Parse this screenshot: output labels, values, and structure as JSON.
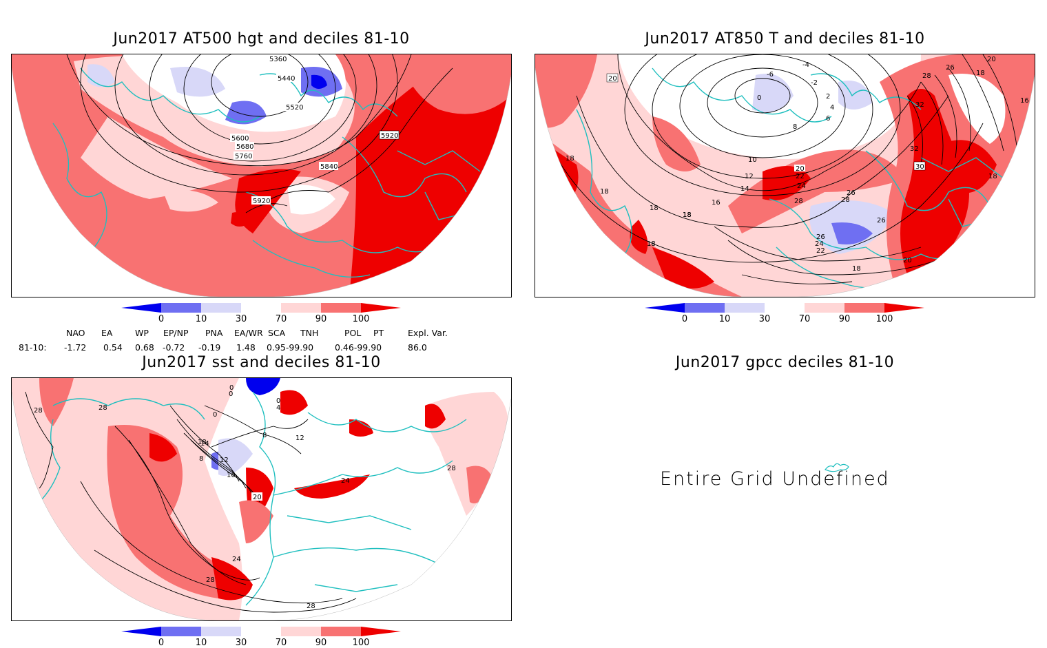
{
  "panels": {
    "hgt": {
      "title": "Jun2017 AT500 hgt and deciles 81-10",
      "contours": [
        "5360",
        "5440",
        "5520",
        "5600",
        "5680",
        "5760",
        "5840",
        "5920",
        "5920"
      ]
    },
    "t850": {
      "title": "Jun2017 AT850 T and deciles 81-10",
      "contours": [
        "18",
        "20",
        "-6",
        "-4",
        "-2",
        "0",
        "2",
        "4",
        "6",
        "8",
        "10",
        "12",
        "14",
        "16",
        "18",
        "18",
        "18",
        "18",
        "20",
        "22",
        "24",
        "26",
        "28",
        "28",
        "28",
        "30",
        "32",
        "32",
        "26",
        "20",
        "18",
        "16",
        "26",
        "26",
        "24",
        "22",
        "18",
        "20",
        "18",
        "18"
      ]
    },
    "sst": {
      "title": "Jun2017 sst and deciles 81-10",
      "contours": [
        "28",
        "28",
        "0",
        "0",
        "0",
        "0",
        "4",
        "8",
        "8",
        "12",
        "12",
        "14",
        "16",
        "18",
        "20",
        "24",
        "24",
        "28",
        "28",
        "28"
      ]
    },
    "gpcc": {
      "title": "Jun2017 gpcc deciles 81-10",
      "message": "Entire Grid Undefined"
    }
  },
  "colorbar": {
    "ticks": [
      "0",
      "10",
      "30",
      "70",
      "90",
      "100"
    ],
    "colors": [
      "#0000ee",
      "#6f6ff2",
      "#d8d8f8",
      "#ffffff",
      "#ffd6d6",
      "#f87272",
      "#ee0000"
    ]
  },
  "indices": {
    "headers": [
      "NAO",
      "EA",
      "WP",
      "EP/NP",
      "PNA",
      "EA/WR",
      "SCA",
      "TNH",
      "POL",
      "PT",
      "Expl. Var."
    ],
    "row_label": "81-10:",
    "values": [
      "-1.72",
      "0.54",
      "0.68",
      "-0.72",
      "-0.19",
      "1.48",
      "0.95-99.90",
      "0.46-99.90",
      "86.0"
    ]
  }
}
